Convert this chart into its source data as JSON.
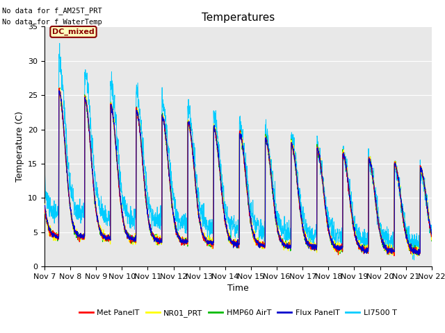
{
  "title": "Temperatures",
  "xlabel": "Time",
  "ylabel": "Temperature (C)",
  "ylim": [
    0,
    35
  ],
  "xlim": [
    0,
    15
  ],
  "x_tick_labels": [
    "Nov 7",
    "Nov 8",
    "Nov 9",
    "Nov 10",
    "Nov 11",
    "Nov 12",
    "Nov 13",
    "Nov 14",
    "Nov 15",
    "Nov 16",
    "Nov 17",
    "Nov 18",
    "Nov 19",
    "Nov 20",
    "Nov 21",
    "Nov 22"
  ],
  "no_data_text1": "No data for f_AM25T_PRT",
  "no_data_text2": "No data for f_WaterTemp",
  "dc_mixed_label": "DC_mixed",
  "legend_entries": [
    "Met PanelT",
    "NR01_PRT",
    "HMP60 AirT",
    "Flux PanelT",
    "LI7500 T"
  ],
  "line_colors": [
    "#ff0000",
    "#ffff00",
    "#00bb00",
    "#0000cc",
    "#00ccff"
  ],
  "background_color": "#e8e8e8",
  "title_fontsize": 11,
  "label_fontsize": 9,
  "tick_fontsize": 8
}
